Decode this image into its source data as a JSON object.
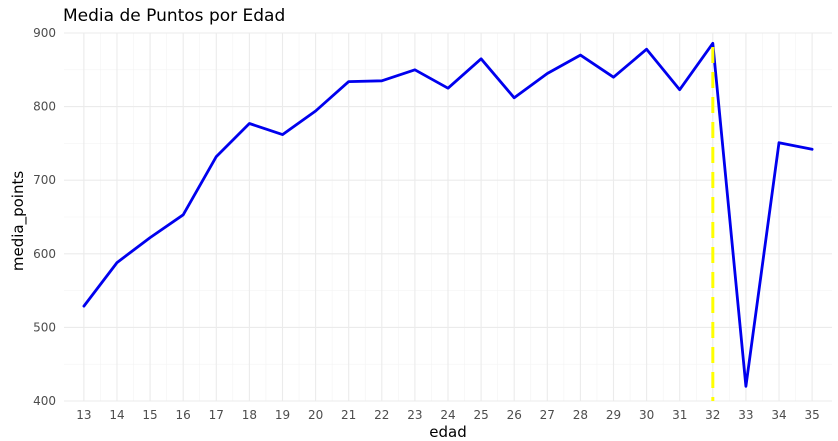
{
  "chart_data": {
    "type": "line",
    "title": "Media de Puntos por Edad",
    "xlabel": "edad",
    "ylabel": "media_points",
    "x": [
      13,
      14,
      15,
      16,
      17,
      18,
      19,
      20,
      21,
      22,
      23,
      24,
      25,
      26,
      27,
      28,
      29,
      30,
      31,
      32,
      33,
      34,
      35
    ],
    "x_tick_labels": [
      "13",
      "14",
      "15",
      "16",
      "17",
      "18",
      "19",
      "20",
      "21",
      "22",
      "23",
      "24",
      "25",
      "26",
      "27",
      "28",
      "29",
      "30",
      "31",
      "32",
      "33",
      "34",
      "35"
    ],
    "y_tick_values": [
      400,
      500,
      600,
      700,
      800,
      900
    ],
    "y_tick_labels": [
      "400",
      "500",
      "600",
      "700",
      "800",
      "900"
    ],
    "series": [
      {
        "values": [
          529,
          588,
          622,
          653,
          732,
          777,
          762,
          794,
          834,
          835,
          850,
          825,
          865,
          812,
          845,
          870,
          840,
          878,
          823,
          886,
          420,
          751,
          742
        ],
        "color": "#0000ee"
      }
    ],
    "reference_line": {
      "x": 32,
      "color": "#ffff00",
      "style": "dashed"
    },
    "xlim": [
      12.4,
      35.6
    ],
    "ylim": [
      400,
      900
    ],
    "grid": true,
    "legend": "none"
  }
}
